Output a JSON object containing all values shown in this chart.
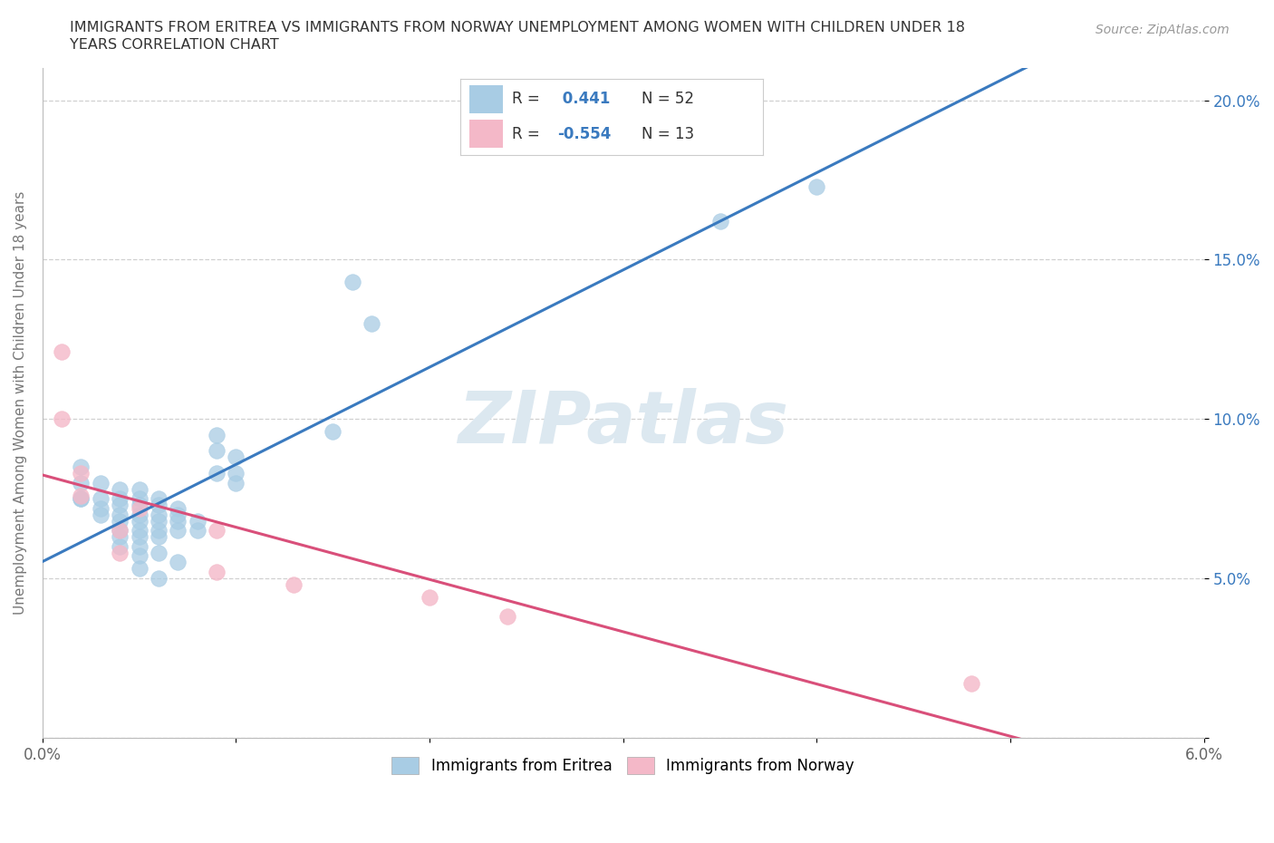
{
  "title_line1": "IMMIGRANTS FROM ERITREA VS IMMIGRANTS FROM NORWAY UNEMPLOYMENT AMONG WOMEN WITH CHILDREN UNDER 18",
  "title_line2": "YEARS CORRELATION CHART",
  "source": "Source: ZipAtlas.com",
  "ylabel": "Unemployment Among Women with Children Under 18 years",
  "xlim": [
    0.0,
    0.06
  ],
  "ylim": [
    0.0,
    0.21
  ],
  "x_ticks": [
    0.0,
    0.01,
    0.02,
    0.03,
    0.04,
    0.05,
    0.06
  ],
  "x_tick_labels": [
    "0.0%",
    "",
    "",
    "",
    "",
    "",
    "6.0%"
  ],
  "y_ticks": [
    0.0,
    0.05,
    0.1,
    0.15,
    0.2
  ],
  "y_tick_labels": [
    "",
    "5.0%",
    "10.0%",
    "15.0%",
    "20.0%"
  ],
  "legend_blue_r": "0.441",
  "legend_blue_n": "52",
  "legend_pink_r": "-0.554",
  "legend_pink_n": "13",
  "blue_color": "#a8cce4",
  "pink_color": "#f4b8c8",
  "blue_line_color": "#3a7abf",
  "pink_line_color": "#d94f7a",
  "blue_scatter": [
    [
      0.002,
      0.085
    ],
    [
      0.002,
      0.08
    ],
    [
      0.002,
      0.075
    ],
    [
      0.002,
      0.075
    ],
    [
      0.003,
      0.08
    ],
    [
      0.003,
      0.075
    ],
    [
      0.003,
      0.072
    ],
    [
      0.003,
      0.07
    ],
    [
      0.004,
      0.078
    ],
    [
      0.004,
      0.075
    ],
    [
      0.004,
      0.073
    ],
    [
      0.004,
      0.07
    ],
    [
      0.004,
      0.068
    ],
    [
      0.004,
      0.065
    ],
    [
      0.004,
      0.063
    ],
    [
      0.004,
      0.06
    ],
    [
      0.005,
      0.078
    ],
    [
      0.005,
      0.075
    ],
    [
      0.005,
      0.073
    ],
    [
      0.005,
      0.07
    ],
    [
      0.005,
      0.068
    ],
    [
      0.005,
      0.065
    ],
    [
      0.005,
      0.063
    ],
    [
      0.005,
      0.06
    ],
    [
      0.005,
      0.057
    ],
    [
      0.005,
      0.053
    ],
    [
      0.006,
      0.075
    ],
    [
      0.006,
      0.073
    ],
    [
      0.006,
      0.07
    ],
    [
      0.006,
      0.068
    ],
    [
      0.006,
      0.065
    ],
    [
      0.006,
      0.063
    ],
    [
      0.006,
      0.058
    ],
    [
      0.006,
      0.05
    ],
    [
      0.007,
      0.072
    ],
    [
      0.007,
      0.07
    ],
    [
      0.007,
      0.068
    ],
    [
      0.007,
      0.065
    ],
    [
      0.007,
      0.055
    ],
    [
      0.008,
      0.068
    ],
    [
      0.008,
      0.065
    ],
    [
      0.009,
      0.095
    ],
    [
      0.009,
      0.09
    ],
    [
      0.009,
      0.083
    ],
    [
      0.01,
      0.088
    ],
    [
      0.01,
      0.083
    ],
    [
      0.01,
      0.08
    ],
    [
      0.015,
      0.096
    ],
    [
      0.016,
      0.143
    ],
    [
      0.017,
      0.13
    ],
    [
      0.035,
      0.162
    ],
    [
      0.04,
      0.173
    ]
  ],
  "pink_scatter": [
    [
      0.001,
      0.121
    ],
    [
      0.001,
      0.1
    ],
    [
      0.002,
      0.083
    ],
    [
      0.002,
      0.076
    ],
    [
      0.004,
      0.065
    ],
    [
      0.004,
      0.058
    ],
    [
      0.005,
      0.072
    ],
    [
      0.009,
      0.065
    ],
    [
      0.009,
      0.052
    ],
    [
      0.013,
      0.048
    ],
    [
      0.02,
      0.044
    ],
    [
      0.024,
      0.038
    ],
    [
      0.048,
      0.017
    ]
  ],
  "background_color": "#ffffff",
  "grid_color": "#d0d0d0",
  "watermark": "ZIPatlas",
  "watermark_color": "#dce8f0"
}
